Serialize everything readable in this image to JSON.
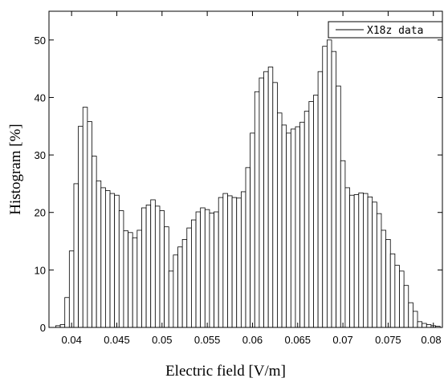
{
  "chart_data": {
    "type": "bar",
    "title": "",
    "xlabel": "Electric field  [V/m]",
    "ylabel": "Histogram  [%]",
    "xlim": [
      0.0375,
      0.081
    ],
    "ylim": [
      0,
      55
    ],
    "xticks": [
      0.04,
      0.045,
      0.05,
      0.055,
      0.06,
      0.065,
      0.07,
      0.075,
      0.08
    ],
    "xtick_labels": [
      "0.04",
      "0.045",
      "0.05",
      "0.055",
      "0.06",
      "0.065",
      "0.07",
      "0.075",
      "0.08"
    ],
    "yticks": [
      0,
      10,
      20,
      30,
      40,
      50
    ],
    "ytick_labels": [
      "0",
      "10",
      "20",
      "30",
      "40",
      "50"
    ],
    "grid": false,
    "legend": {
      "position": "top-right",
      "entries": [
        "X18z data"
      ]
    },
    "bin_width": 0.0005,
    "series": [
      {
        "name": "X18z data",
        "x": [
          0.0385,
          0.039,
          0.0395,
          0.04,
          0.0405,
          0.041,
          0.0415,
          0.042,
          0.0425,
          0.043,
          0.0435,
          0.044,
          0.0445,
          0.045,
          0.0455,
          0.046,
          0.0465,
          0.047,
          0.0475,
          0.048,
          0.0485,
          0.049,
          0.0495,
          0.05,
          0.0505,
          0.051,
          0.0515,
          0.052,
          0.0525,
          0.053,
          0.0535,
          0.054,
          0.0545,
          0.055,
          0.0555,
          0.056,
          0.0565,
          0.057,
          0.0575,
          0.058,
          0.0585,
          0.059,
          0.0595,
          0.06,
          0.0605,
          0.061,
          0.0615,
          0.062,
          0.0625,
          0.063,
          0.0635,
          0.064,
          0.0645,
          0.065,
          0.0655,
          0.066,
          0.0665,
          0.067,
          0.0675,
          0.068,
          0.0685,
          0.069,
          0.0695,
          0.07,
          0.0705,
          0.071,
          0.0715,
          0.072,
          0.0725,
          0.073,
          0.0735,
          0.074,
          0.0745,
          0.075,
          0.0755,
          0.076,
          0.0765,
          0.077,
          0.0775,
          0.078,
          0.0785,
          0.079,
          0.0795,
          0.08,
          0.0805
        ],
        "values": [
          0.3,
          0.5,
          5.2,
          13.3,
          25.0,
          35.0,
          38.3,
          35.8,
          29.8,
          25.5,
          24.3,
          23.8,
          23.3,
          23.0,
          20.3,
          16.8,
          16.5,
          15.6,
          16.9,
          20.8,
          21.3,
          22.2,
          21.1,
          20.3,
          17.5,
          9.8,
          12.6,
          14.0,
          15.3,
          17.3,
          18.7,
          20.1,
          20.8,
          20.5,
          19.9,
          20.1,
          22.6,
          23.3,
          22.9,
          22.6,
          22.5,
          23.6,
          27.8,
          33.8,
          41.0,
          43.4,
          44.5,
          45.3,
          42.6,
          37.3,
          35.2,
          33.8,
          34.5,
          34.9,
          35.7,
          37.6,
          39.3,
          40.4,
          44.5,
          48.9,
          50.0,
          48.0,
          42.0,
          29.0,
          24.3,
          23.0,
          23.1,
          23.4,
          23.3,
          22.7,
          21.8,
          19.8,
          16.9,
          15.3,
          12.8,
          10.8,
          9.8,
          7.3,
          4.3,
          2.8,
          1.0,
          0.7,
          0.5,
          0.3,
          0.2
        ]
      }
    ]
  }
}
